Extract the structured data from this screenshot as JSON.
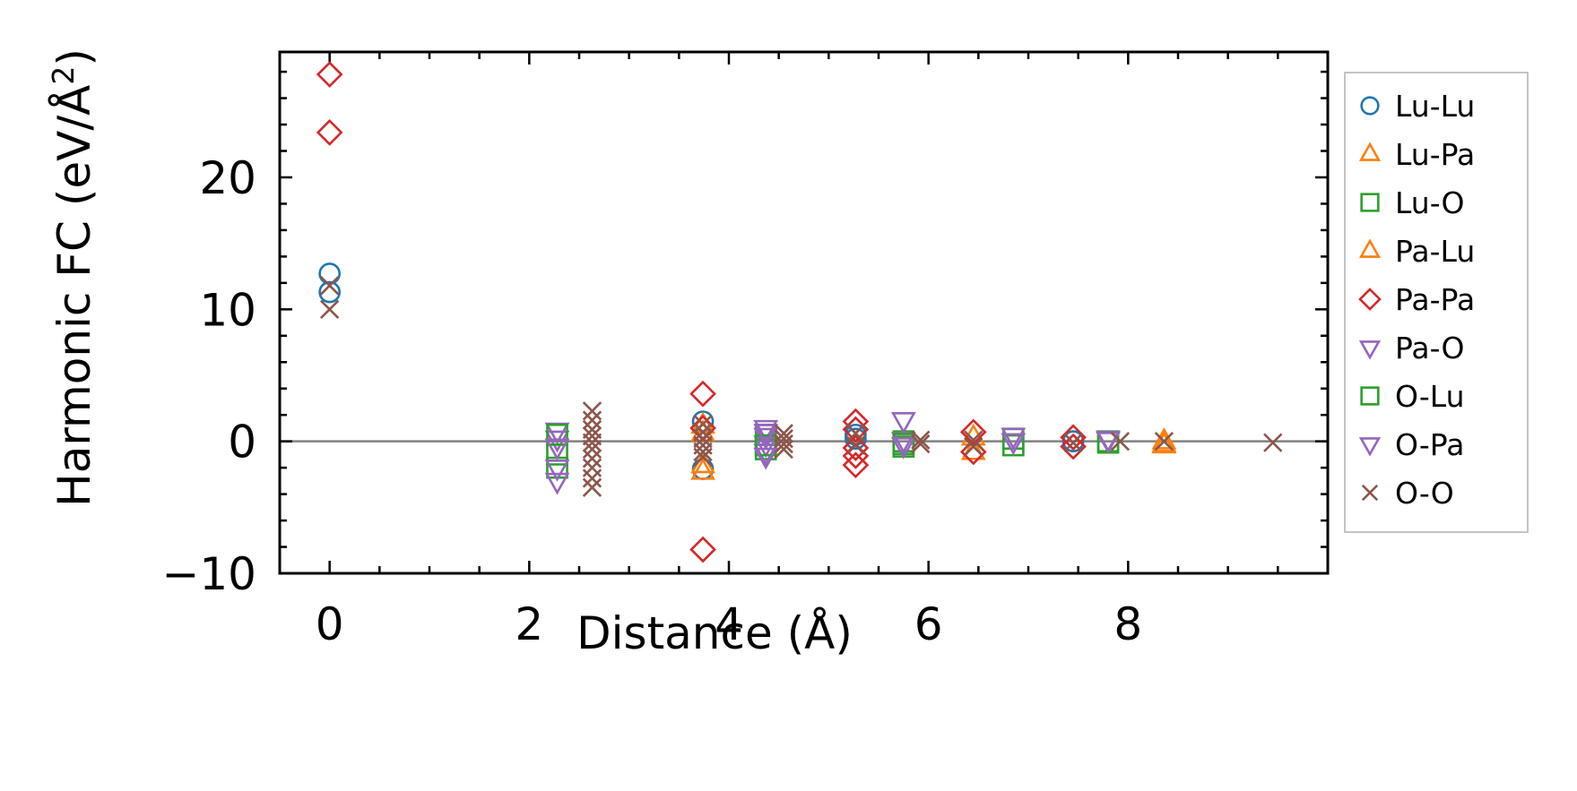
{
  "chart_data": {
    "type": "scatter",
    "xlabel": "Distance (Å)",
    "ylabel_main": "Harmonic FC (eV/Å",
    "ylabel_sup": "2",
    "ylabel_close": ")",
    "xlim": [
      -0.5,
      10.0
    ],
    "ylim": [
      -10.0,
      29.5
    ],
    "xticks": [
      0,
      2,
      4,
      6,
      8
    ],
    "xtick_labels": [
      "0",
      "2",
      "4",
      "6",
      "8"
    ],
    "yticks": [
      -10,
      0,
      10,
      20
    ],
    "ytick_labels": [
      "−10",
      "0",
      "10",
      "20"
    ],
    "zero_line": true,
    "grid": false,
    "legend_position": "outside-right",
    "series": [
      {
        "name": "Lu-Lu",
        "marker": "circle",
        "color": "#1f77b4",
        "points": [
          [
            0,
            12.7
          ],
          [
            0,
            11.3
          ],
          [
            3.74,
            1.5
          ],
          [
            3.74,
            -2.1
          ],
          [
            5.27,
            0.5
          ],
          [
            5.27,
            0.2
          ],
          [
            7.45,
            0.0
          ]
        ]
      },
      {
        "name": "Lu-Pa",
        "marker": "triangle-up",
        "color": "#ff7f0e",
        "points": [
          [
            3.74,
            1.2
          ],
          [
            3.74,
            -1.8
          ],
          [
            6.45,
            -0.8
          ],
          [
            8.36,
            -0.3
          ],
          [
            8.36,
            0.0
          ]
        ]
      },
      {
        "name": "Lu-O",
        "marker": "square",
        "color": "#2ca02c",
        "points": [
          [
            2.28,
            -1.0
          ],
          [
            2.28,
            -2.0
          ],
          [
            4.37,
            0.5
          ],
          [
            4.37,
            -0.6
          ],
          [
            5.75,
            0.0
          ],
          [
            5.75,
            -0.4
          ],
          [
            6.85,
            0.2
          ],
          [
            7.8,
            0.0
          ]
        ]
      },
      {
        "name": "Pa-Lu",
        "marker": "triangle-up",
        "color": "#ff7f0e",
        "points": [
          [
            3.74,
            -2.3
          ],
          [
            3.74,
            0.6
          ],
          [
            6.45,
            0.3
          ],
          [
            8.36,
            -0.2
          ]
        ]
      },
      {
        "name": "Pa-Pa",
        "marker": "diamond",
        "color": "#d62728",
        "points": [
          [
            0,
            27.8
          ],
          [
            0,
            23.4
          ],
          [
            3.74,
            3.6
          ],
          [
            3.74,
            1.0
          ],
          [
            3.74,
            -8.2
          ],
          [
            5.27,
            1.5
          ],
          [
            5.27,
            0.9
          ],
          [
            5.27,
            -0.5
          ],
          [
            5.27,
            -1.1
          ],
          [
            5.27,
            -1.8
          ],
          [
            6.45,
            0.7
          ],
          [
            6.45,
            -0.8
          ],
          [
            7.45,
            0.3
          ],
          [
            7.45,
            -0.4
          ]
        ]
      },
      {
        "name": "Pa-O",
        "marker": "triangle-down",
        "color": "#9467bd",
        "points": [
          [
            2.28,
            0.8
          ],
          [
            2.28,
            0.2
          ],
          [
            2.28,
            -2.0
          ],
          [
            2.28,
            -3.0
          ],
          [
            4.37,
            1.0
          ],
          [
            4.37,
            0.4
          ],
          [
            4.37,
            -0.2
          ],
          [
            4.37,
            -0.8
          ],
          [
            5.75,
            1.6
          ],
          [
            5.75,
            0.1
          ],
          [
            6.85,
            0.4
          ],
          [
            7.8,
            0.2
          ]
        ]
      },
      {
        "name": "O-Lu",
        "marker": "square",
        "color": "#2ca02c",
        "points": [
          [
            2.28,
            0.5
          ],
          [
            4.37,
            -0.3
          ],
          [
            5.75,
            -0.2
          ],
          [
            6.85,
            -0.3
          ],
          [
            7.8,
            -0.1
          ]
        ]
      },
      {
        "name": "O-Pa",
        "marker": "triangle-down",
        "color": "#9467bd",
        "points": [
          [
            2.28,
            -0.4
          ],
          [
            4.37,
            -1.1
          ],
          [
            4.37,
            0.7
          ],
          [
            5.75,
            -0.3
          ],
          [
            6.85,
            0.0
          ],
          [
            7.8,
            0.1
          ]
        ]
      },
      {
        "name": "O-O",
        "marker": "x",
        "color": "#8c564b",
        "points": [
          [
            0,
            11.8
          ],
          [
            0,
            10.0
          ],
          [
            2.63,
            2.3
          ],
          [
            2.63,
            1.6
          ],
          [
            2.63,
            0.9
          ],
          [
            2.63,
            0.4
          ],
          [
            2.63,
            -0.1
          ],
          [
            2.63,
            -0.6
          ],
          [
            2.63,
            -1.3
          ],
          [
            2.63,
            -2.0
          ],
          [
            2.63,
            -2.8
          ],
          [
            2.63,
            -3.5
          ],
          [
            3.74,
            1.3
          ],
          [
            3.74,
            0.7
          ],
          [
            3.74,
            0.2
          ],
          [
            3.74,
            -0.3
          ],
          [
            3.74,
            -0.8
          ],
          [
            3.74,
            -1.2
          ],
          [
            4.55,
            0.6
          ],
          [
            4.55,
            0.2
          ],
          [
            4.55,
            -0.2
          ],
          [
            4.55,
            -0.6
          ],
          [
            5.27,
            0.6
          ],
          [
            5.27,
            -0.3
          ],
          [
            5.92,
            0.1
          ],
          [
            5.92,
            -0.2
          ],
          [
            6.45,
            0.1
          ],
          [
            6.45,
            -0.4
          ],
          [
            7.45,
            -0.1
          ],
          [
            7.92,
            0.0
          ],
          [
            8.36,
            0.0
          ],
          [
            9.45,
            -0.1
          ]
        ]
      }
    ]
  }
}
